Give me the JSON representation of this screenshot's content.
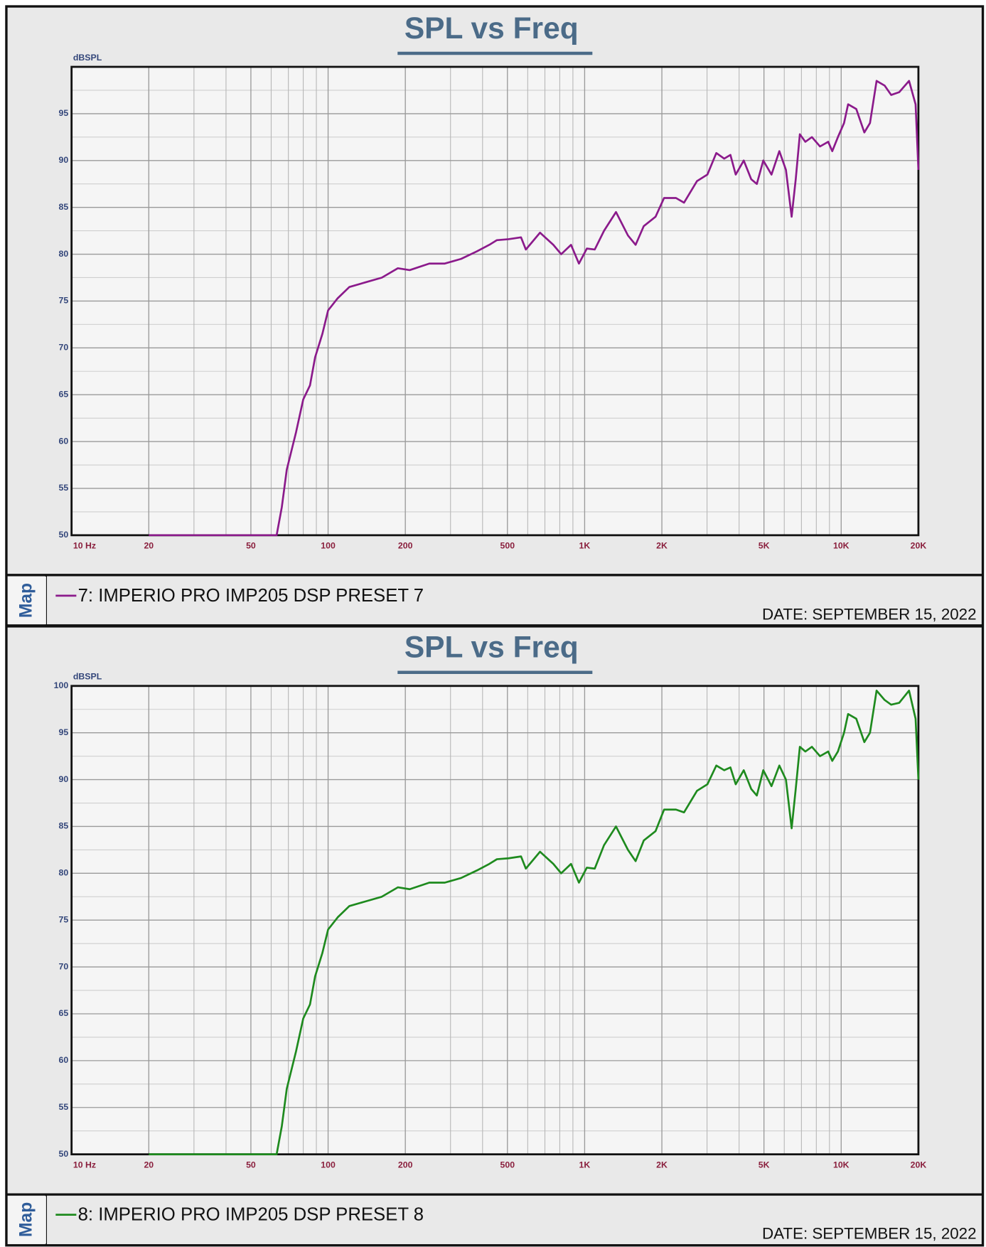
{
  "chart_data": [
    {
      "type": "line",
      "title": "SPL vs Freq",
      "y_label": "dBSPL",
      "tab": "Map",
      "date": "DATE: SEPTEMBER 15, 2022",
      "log_x": true,
      "grid": true,
      "xlim": [
        10,
        20000
      ],
      "ylim": [
        50,
        100
      ],
      "xticks": [
        {
          "value": 10,
          "label": "10  Hz"
        },
        20,
        50,
        100,
        200,
        500,
        {
          "value": 1000,
          "label": "1K"
        },
        {
          "value": 2000,
          "label": "2K"
        },
        {
          "value": 5000,
          "label": "5K"
        },
        {
          "value": 10000,
          "label": "10K"
        },
        {
          "value": 20000,
          "label": "20K"
        }
      ],
      "minor_xticks": [
        30,
        40,
        60,
        70,
        80,
        90,
        300,
        400,
        600,
        700,
        800,
        900,
        3000,
        4000,
        6000,
        7000,
        8000,
        9000
      ],
      "yticks": [
        50,
        55,
        60,
        65,
        70,
        75,
        80,
        85,
        90,
        95
      ],
      "minor_yticks": [
        52.5,
        57.5,
        62.5,
        67.5,
        72.5,
        77.5,
        82.5,
        87.5,
        92.5,
        97.5
      ],
      "x": [
        20,
        63,
        66,
        69,
        75,
        80,
        85,
        89,
        95,
        100,
        109,
        121,
        140,
        162,
        187,
        208,
        248,
        285,
        330,
        380,
        425,
        455,
        505,
        565,
        590,
        670,
        755,
        810,
        885,
        950,
        1020,
        1095,
        1190,
        1325,
        1475,
        1580,
        1700,
        1890,
        2040,
        2270,
        2440,
        2740,
        3010,
        3260,
        3500,
        3700,
        3880,
        4170,
        4460,
        4690,
        4970,
        5350,
        5740,
        6090,
        6410,
        6650,
        6900,
        7250,
        7690,
        8270,
        8900,
        9230,
        9710,
        10260,
        10640,
        11450,
        12310,
        12950,
        13740,
        14770,
        15660,
        16840,
        18390,
        19500,
        20000
      ],
      "series": [
        {
          "name": "7: IMPERIO PRO IMP205 DSP PRESET 7",
          "color": "#8b1a8b",
          "values": [
            50,
            50,
            53,
            57,
            61,
            64.5,
            66,
            69,
            71.5,
            74,
            75.3,
            76.5,
            77,
            77.5,
            78.5,
            78.3,
            79,
            79,
            79.5,
            80.3,
            81,
            81.5,
            81.6,
            81.8,
            80.5,
            82.3,
            81,
            80,
            81,
            79,
            80.6,
            80.5,
            82.5,
            84.5,
            82,
            81,
            83,
            84,
            86,
            86,
            85.5,
            87.8,
            88.5,
            90.8,
            90.2,
            90.6,
            88.5,
            90,
            88,
            87.5,
            90,
            88.5,
            91,
            89,
            84,
            88,
            92.8,
            92,
            92.5,
            91.5,
            92,
            91,
            92.5,
            94,
            96,
            95.5,
            93,
            94,
            98.5,
            98,
            97,
            97.3,
            98.5,
            96,
            89
          ]
        }
      ]
    },
    {
      "type": "line",
      "title": "SPL vs Freq",
      "y_label": "dBSPL",
      "tab": "Map",
      "date": "DATE: SEPTEMBER 15, 2022",
      "log_x": true,
      "grid": true,
      "xlim": [
        10,
        20000
      ],
      "ylim": [
        50,
        100
      ],
      "xticks": [
        {
          "value": 10,
          "label": "10  Hz"
        },
        20,
        50,
        100,
        200,
        500,
        {
          "value": 1000,
          "label": "1K"
        },
        {
          "value": 2000,
          "label": "2K"
        },
        {
          "value": 5000,
          "label": "5K"
        },
        {
          "value": 10000,
          "label": "10K"
        },
        {
          "value": 20000,
          "label": "20K"
        }
      ],
      "minor_xticks": [
        30,
        40,
        60,
        70,
        80,
        90,
        300,
        400,
        600,
        700,
        800,
        900,
        3000,
        4000,
        6000,
        7000,
        8000,
        9000
      ],
      "yticks": [
        50,
        55,
        60,
        65,
        70,
        75,
        80,
        85,
        90,
        95,
        100
      ],
      "minor_yticks": [
        52.5,
        57.5,
        62.5,
        67.5,
        72.5,
        77.5,
        82.5,
        87.5,
        92.5,
        97.5
      ],
      "x": [
        20,
        63,
        66,
        69,
        75,
        80,
        85,
        89,
        95,
        100,
        109,
        121,
        140,
        162,
        187,
        208,
        248,
        285,
        330,
        380,
        425,
        455,
        505,
        565,
        590,
        670,
        755,
        810,
        885,
        950,
        1020,
        1095,
        1190,
        1325,
        1475,
        1580,
        1700,
        1890,
        2040,
        2270,
        2440,
        2740,
        3010,
        3260,
        3500,
        3700,
        3880,
        4170,
        4460,
        4690,
        4970,
        5350,
        5740,
        6090,
        6410,
        6650,
        6900,
        7250,
        7690,
        8270,
        8900,
        9230,
        9710,
        10260,
        10640,
        11450,
        12310,
        12950,
        13740,
        14770,
        15660,
        16840,
        18390,
        19500,
        20000
      ],
      "series": [
        {
          "name": "8: IMPERIO PRO IMP205 DSP PRESET 8",
          "color": "#1e8a1e",
          "values": [
            50,
            50,
            53,
            57,
            61,
            64.5,
            66,
            69,
            71.5,
            74,
            75.3,
            76.5,
            77,
            77.5,
            78.5,
            78.3,
            79,
            79,
            79.5,
            80.3,
            81,
            81.5,
            81.6,
            81.8,
            80.5,
            82.3,
            81,
            80,
            81,
            79,
            80.6,
            80.5,
            83,
            85,
            82.5,
            81.3,
            83.5,
            84.5,
            86.8,
            86.8,
            86.5,
            88.8,
            89.5,
            91.5,
            91,
            91.3,
            89.5,
            91,
            89,
            88.3,
            91,
            89.3,
            91.5,
            90,
            84.8,
            89,
            93.5,
            93,
            93.5,
            92.5,
            93,
            92,
            93,
            95,
            97,
            96.5,
            94,
            95,
            99.5,
            98.5,
            98,
            98.2,
            99.5,
            96.5,
            90
          ]
        }
      ]
    }
  ]
}
